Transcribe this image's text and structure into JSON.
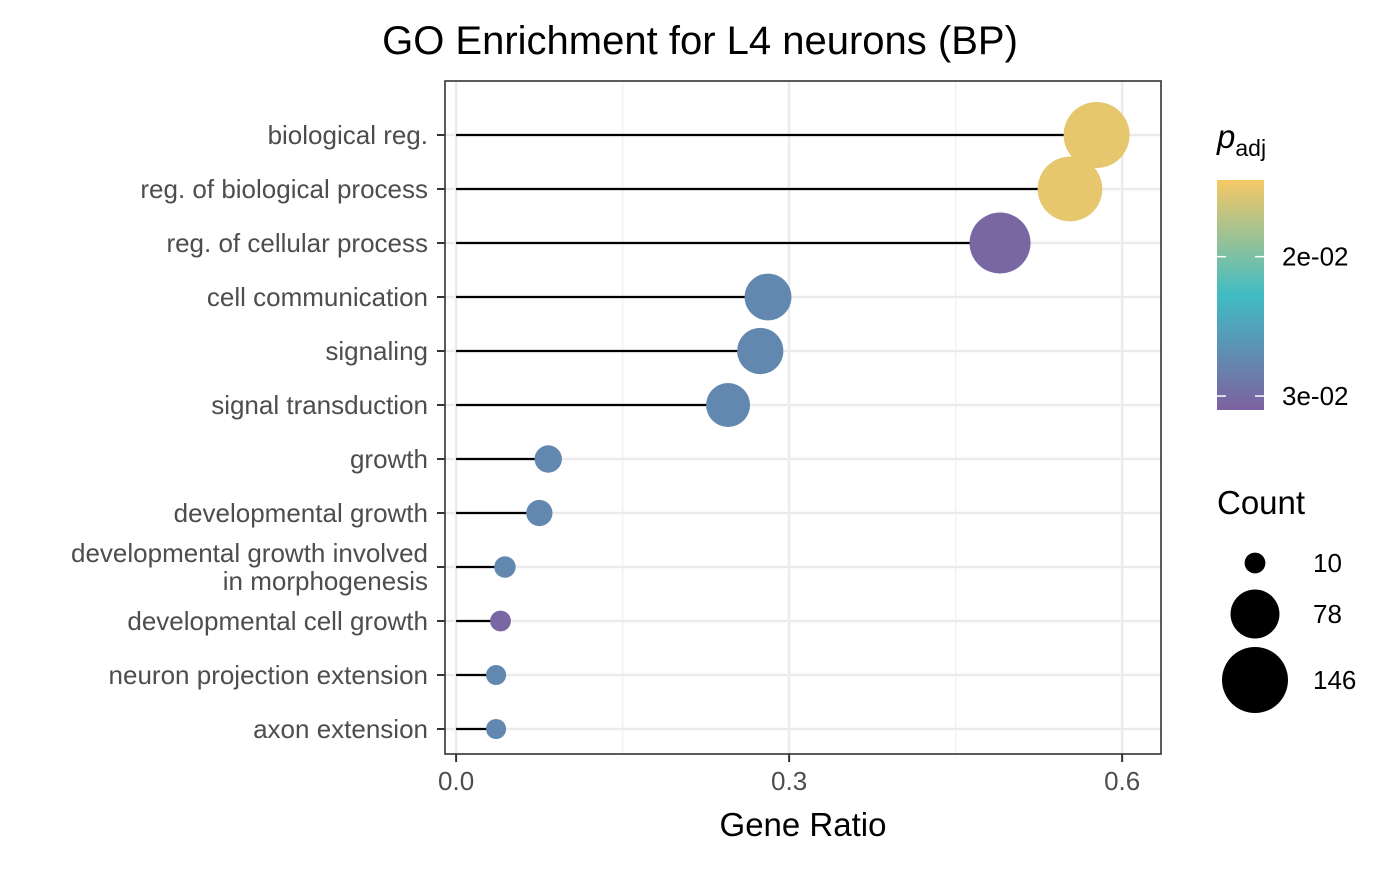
{
  "chart_data": {
    "type": "lollipop-dot",
    "title": "GO Enrichment for L4 neurons (BP)",
    "xlabel": "Gene Ratio",
    "ylabel": "",
    "xlim": [
      -0.01,
      0.635
    ],
    "xticks": [
      0.0,
      0.3,
      0.6
    ],
    "xtick_labels": [
      "0.0",
      "0.3",
      "0.6"
    ],
    "grid": true,
    "categories": [
      "biological reg.",
      "reg. of biological process",
      "reg. of cellular process",
      "cell communication",
      "signaling",
      "signal transduction",
      "growth",
      "developmental growth",
      "developmental growth involved\nin morphogenesis",
      "developmental cell growth",
      "neuron projection extension",
      "axon extension"
    ],
    "gene_ratio": [
      0.577,
      0.553,
      0.49,
      0.281,
      0.274,
      0.245,
      0.083,
      0.075,
      0.044,
      0.04,
      0.036,
      0.036
    ],
    "count": [
      146,
      140,
      124,
      71,
      69,
      62,
      21,
      19,
      11,
      10,
      9,
      9
    ],
    "p_adj": [
      0.0152,
      0.0152,
      0.0305,
      0.0275,
      0.0275,
      0.0275,
      0.0275,
      0.0275,
      0.0275,
      0.0305,
      0.0275,
      0.0275
    ],
    "color_legend": {
      "title_main": "p",
      "title_sub": "adj",
      "range": [
        0.0145,
        0.031
      ],
      "ticks": [
        0.02,
        0.03
      ],
      "tick_labels": [
        "2e-02",
        "3e-02"
      ],
      "colors_low_to_high": [
        "#f6c865",
        "#40bcc4",
        "#7d61a1"
      ]
    },
    "size_legend": {
      "title": "Count",
      "values": [
        10,
        78,
        146
      ],
      "labels": [
        "10",
        "78",
        "146"
      ]
    },
    "legend_position": "right"
  }
}
